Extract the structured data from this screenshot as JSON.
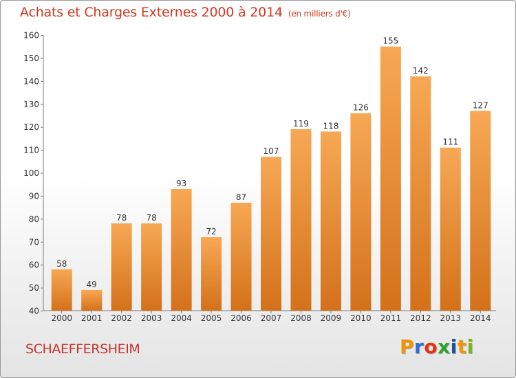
{
  "header": {
    "title": "Achats et Charges Externes 2000 à 2014",
    "subtitle": "(en milliers d'€)"
  },
  "footer": {
    "commune": "SCHAEFFERSHEIM",
    "logo_text": "Proxiti",
    "logo_colors": [
      "#f29400",
      "#2f6fd0",
      "#e63312",
      "#2aa52a",
      "#1b4fa8",
      "#f29400",
      "#7ab51d"
    ]
  },
  "colors": {
    "bar_top": "#f7a854",
    "bar_bottom": "#d4711a",
    "title": "#d2371f"
  },
  "chart_data": {
    "type": "bar",
    "title": "Achats et Charges Externes 2000 à 2014",
    "subtitle": "(en milliers d'€)",
    "categories": [
      "2000",
      "2001",
      "2002",
      "2003",
      "2004",
      "2005",
      "2006",
      "2007",
      "2008",
      "2009",
      "2010",
      "2011",
      "2012",
      "2013",
      "2014"
    ],
    "values": [
      58,
      49,
      78,
      78,
      93,
      72,
      87,
      107,
      119,
      118,
      126,
      155,
      142,
      111,
      127
    ],
    "ylim": [
      40,
      160
    ],
    "yticks": [
      40,
      50,
      60,
      70,
      80,
      90,
      100,
      110,
      120,
      130,
      140,
      150,
      160
    ],
    "grid": false,
    "data_labels": true
  }
}
